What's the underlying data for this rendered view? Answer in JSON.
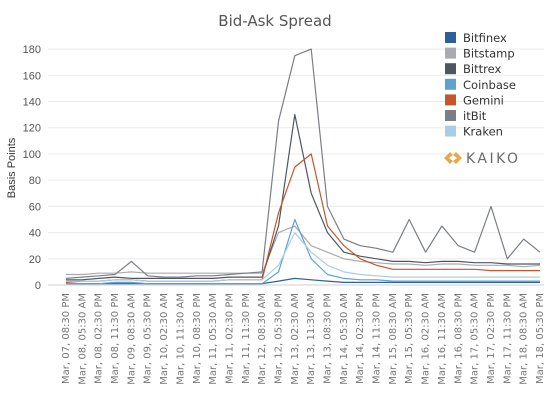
{
  "chart_data": {
    "type": "line",
    "title": "Bid-Ask Spread",
    "ylabel": "Basis Points",
    "xlabel": "",
    "ylim": [
      0,
      190
    ],
    "yticks": [
      0,
      20,
      40,
      60,
      80,
      100,
      120,
      140,
      160,
      180
    ],
    "grid": "horizontal",
    "legend_position": "top-right",
    "x": [
      "Mar, 07, 08:30 PM",
      "Mar, 08, 05:30 AM",
      "Mar, 08, 02:30 PM",
      "Mar, 08, 11:30 PM",
      "Mar, 09, 08:30 AM",
      "Mar, 09, 05:30 PM",
      "Mar, 10, 02:30 AM",
      "Mar, 10, 11:30 AM",
      "Mar, 10, 08:30 PM",
      "Mar, 11, 05:30 AM",
      "Mar, 11, 02:30 PM",
      "Mar, 11, 11:30 PM",
      "Mar, 12, 08:30 AM",
      "Mar, 12, 05:30 PM",
      "Mar, 13, 02:30 AM",
      "Mar, 13, 11:30 AM",
      "Mar, 13, 08:30 PM",
      "Mar, 14, 05:30 AM",
      "Mar, 14, 02:30 PM",
      "Mar, 14, 11:30 PM",
      "Mar, 15, 08:30 AM",
      "Mar, 15, 05:30 PM",
      "Mar, 16, 02:30 AM",
      "Mar, 16, 11:30 AM",
      "Mar, 16, 08:30 PM",
      "Mar, 17, 05:30 AM",
      "Mar, 17, 02:30 PM",
      "Mar, 17, 11:30 PM",
      "Mar, 18, 08:30 AM",
      "Mar, 18, 05:30 PM"
    ],
    "series": [
      {
        "name": "Bitfinex",
        "color": "#2f5f98",
        "values": [
          1,
          1,
          1,
          1,
          1,
          1,
          1,
          1,
          1,
          1,
          1,
          1,
          1,
          3,
          5,
          4,
          3,
          2,
          2,
          2,
          2,
          2,
          2,
          2,
          2,
          2,
          2,
          2,
          2,
          2
        ]
      },
      {
        "name": "Bitstamp",
        "color": "#a8abb0",
        "values": [
          8,
          8,
          9,
          9,
          10,
          9,
          9,
          9,
          9,
          9,
          9,
          9,
          9,
          40,
          45,
          30,
          25,
          20,
          18,
          17,
          16,
          16,
          15,
          16,
          16,
          15,
          15,
          15,
          14,
          15
        ]
      },
      {
        "name": "Bittrex",
        "color": "#4f5661",
        "values": [
          4,
          4,
          5,
          6,
          5,
          5,
          5,
          5,
          5,
          5,
          6,
          6,
          6,
          45,
          130,
          70,
          40,
          25,
          22,
          20,
          18,
          18,
          17,
          18,
          18,
          17,
          17,
          16,
          16,
          16
        ]
      },
      {
        "name": "Coinbase",
        "color": "#5ea2d0",
        "values": [
          1,
          1,
          1,
          2,
          2,
          1,
          1,
          1,
          1,
          1,
          1,
          1,
          1,
          10,
          50,
          20,
          8,
          5,
          4,
          4,
          3,
          3,
          3,
          3,
          3,
          3,
          3,
          3,
          3,
          3
        ]
      },
      {
        "name": "Gemini",
        "color": "#c4562c",
        "values": [
          2,
          3,
          3,
          4,
          4,
          3,
          3,
          3,
          3,
          3,
          4,
          4,
          4,
          55,
          90,
          100,
          45,
          30,
          20,
          15,
          12,
          12,
          12,
          12,
          12,
          12,
          11,
          11,
          11,
          11
        ]
      },
      {
        "name": "itBit",
        "color": "#7a7f86",
        "values": [
          5,
          6,
          7,
          8,
          18,
          7,
          6,
          6,
          7,
          7,
          8,
          9,
          10,
          125,
          175,
          180,
          60,
          35,
          30,
          28,
          25,
          50,
          25,
          45,
          30,
          25,
          60,
          20,
          35,
          25
        ]
      },
      {
        "name": "Kraken",
        "color": "#a9cde8",
        "values": [
          3,
          3,
          3,
          4,
          4,
          3,
          3,
          3,
          3,
          3,
          4,
          4,
          4,
          15,
          40,
          25,
          15,
          10,
          8,
          7,
          6,
          6,
          6,
          6,
          6,
          6,
          6,
          6,
          6,
          6
        ]
      }
    ]
  },
  "logo": {
    "text": "KAIKO",
    "color": "#e3a94b"
  }
}
